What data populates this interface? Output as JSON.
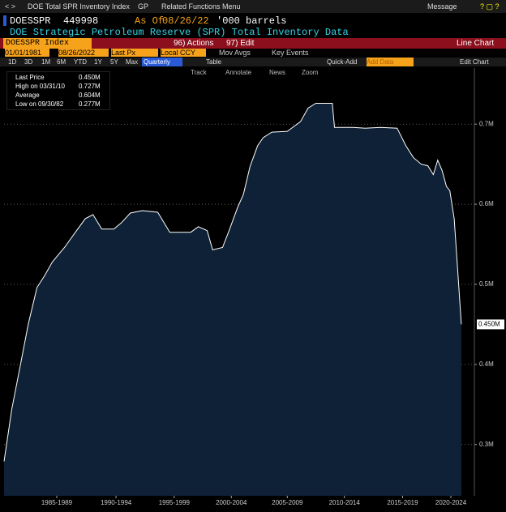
{
  "top_bar": {
    "title": "DOE Total SPR Inventory Index",
    "gp": "GP",
    "related": "Related Functions Menu",
    "message": "Message"
  },
  "header": {
    "ticker": "DOESSPR",
    "value": "449998",
    "as_of_label": "As Of",
    "as_of": "08/26/22",
    "units": "'000 barrels",
    "description": "DOE Strategic Petroleum Reserve (SPR) Total Inventory Data"
  },
  "toolbar": {
    "security": "DOESSPR Index",
    "actions": "96) Actions",
    "edit": "97) Edit",
    "chart_type": "Line Chart",
    "start_date": "01/01/1981",
    "end_date": "08/26/2022",
    "price": "Last Px",
    "currency": "Local CCY",
    "mov_avgs": "Mov Avgs",
    "key_events": "Key Events",
    "periods": [
      "1D",
      "3D",
      "1M",
      "6M",
      "YTD",
      "1Y",
      "5Y",
      "Max"
    ],
    "frequency": "Quarterly",
    "table": "Table",
    "quick_add": "Quick-Add",
    "add_data": "Add Data",
    "edit_chart": "Edit Chart"
  },
  "chart_tools": [
    "Track",
    "Annotate",
    "News",
    "Zoom"
  ],
  "legend": [
    {
      "label": "Last Price",
      "value": "0.450M"
    },
    {
      "label": "High on 03/31/10",
      "value": "0.727M"
    },
    {
      "label": "Average",
      "value": "0.604M"
    },
    {
      "label": "Low on 09/30/82",
      "value": "0.277M"
    }
  ],
  "chart_data": {
    "type": "area",
    "color": "#ffffff",
    "fill": "#0e2136",
    "grid": true,
    "y_axis_side": "right",
    "x": [
      1981.0,
      1981.7,
      1982.5,
      1983.2,
      1984.0,
      1984.7,
      1985.4,
      1986.5,
      1987.6,
      1988.4,
      1989.1,
      1989.9,
      1991.0,
      1991.7,
      1992.5,
      1993.6,
      1995.0,
      1996.1,
      1998.0,
      1998.7,
      1999.5,
      2000.0,
      2000.9,
      2001.5,
      2002.3,
      2002.8,
      2003.4,
      2004.1,
      2004.6,
      2005.4,
      2006.8,
      2008.0,
      2008.7,
      2009.4,
      2010.9,
      2011.1,
      2012.8,
      2013.9,
      2015.3,
      2016.8,
      2017.6,
      2018.3,
      2019.0,
      2019.6,
      2020.1,
      2020.5,
      2020.9,
      2021.3,
      2021.6,
      2022.0,
      2022.3,
      2022.65
    ],
    "values": [
      0.279,
      0.344,
      0.4,
      0.45,
      0.496,
      0.511,
      0.528,
      0.546,
      0.567,
      0.582,
      0.587,
      0.569,
      0.569,
      0.577,
      0.589,
      0.592,
      0.59,
      0.565,
      0.565,
      0.572,
      0.567,
      0.543,
      0.546,
      0.567,
      0.597,
      0.612,
      0.647,
      0.673,
      0.683,
      0.69,
      0.691,
      0.703,
      0.72,
      0.726,
      0.726,
      0.696,
      0.696,
      0.695,
      0.696,
      0.695,
      0.673,
      0.658,
      0.65,
      0.648,
      0.637,
      0.655,
      0.642,
      0.622,
      0.617,
      0.582,
      0.521,
      0.45
    ],
    "last_value_label": "0.450M",
    "xlim": [
      1981,
      2023.84
    ],
    "ylim": [
      0.236,
      0.77
    ],
    "yticks": [
      {
        "value": 0.3,
        "label": "0.3M"
      },
      {
        "value": 0.4,
        "label": "0.4M"
      },
      {
        "value": 0.5,
        "label": "0.5M"
      },
      {
        "value": 0.6,
        "label": "0.6M"
      },
      {
        "value": 0.7,
        "label": "0.7M"
      }
    ],
    "xticks": [
      {
        "value": 1985.8,
        "label": "1985-1989"
      },
      {
        "value": 1991.2,
        "label": "1990-1994"
      },
      {
        "value": 1996.5,
        "label": "1995-1999"
      },
      {
        "value": 2001.7,
        "label": "2000-2004"
      },
      {
        "value": 2006.8,
        "label": "2005-2009"
      },
      {
        "value": 2012.0,
        "label": "2010-2014"
      },
      {
        "value": 2017.3,
        "label": "2015-2019"
      },
      {
        "value": 2021.7,
        "label": "2020-2024"
      }
    ]
  }
}
